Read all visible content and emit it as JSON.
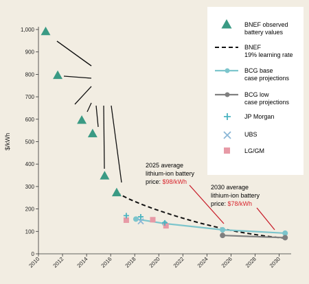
{
  "colors": {
    "background": "#f2ede2",
    "legend_bg": "#ffffff",
    "teal_marker": "#3a9a84",
    "bcg_base": "#7cc5cc",
    "bcg_low": "#7f7f7f",
    "dashed": "#111111",
    "jp_morgan": "#4ab3c0",
    "ubs": "#8ab7d6",
    "lg_gm": "#e79aa6",
    "price_red": "#d8242c"
  },
  "chart_data": {
    "type": "scatter",
    "ylabel": "$/kWh",
    "xlabel": "",
    "xlim": [
      2010,
      2031
    ],
    "ylim": [
      0,
      1000
    ],
    "x_ticks": [
      2010,
      2012,
      2014,
      2016,
      2018,
      2020,
      2022,
      2024,
      2026,
      2028,
      2030
    ],
    "y_ticks": [
      0,
      100,
      200,
      300,
      400,
      500,
      600,
      700,
      800,
      900,
      1000
    ],
    "y_tick_labels": [
      "0",
      "100",
      "200",
      "300",
      "400",
      "500",
      "600",
      "700",
      "800",
      "900",
      "1,000"
    ],
    "series": [
      {
        "key": "bnef_observed",
        "name": "BNEF observed battery values",
        "points": [
          [
            2010.6,
            990
          ],
          [
            2011.6,
            795
          ],
          [
            2013.6,
            595
          ],
          [
            2014.5,
            535
          ],
          [
            2015.5,
            347
          ],
          [
            2016.5,
            272
          ]
        ]
      },
      {
        "key": "bnef_learning",
        "name": "BNEF 19% learning rate",
        "points": [
          [
            2016.5,
            272
          ],
          [
            2017.5,
            245
          ],
          [
            2018.5,
            222
          ],
          [
            2019.5,
            202
          ],
          [
            2020.5,
            184
          ],
          [
            2021.5,
            167
          ],
          [
            2022.5,
            151
          ],
          [
            2023.5,
            136
          ],
          [
            2024.5,
            123
          ],
          [
            2025.5,
            110
          ],
          [
            2026.5,
            99
          ],
          [
            2027.5,
            90
          ],
          [
            2028.5,
            82
          ],
          [
            2029.5,
            75
          ],
          [
            2030.5,
            70
          ]
        ]
      },
      {
        "key": "bcg_base",
        "name": "BCG base case projections",
        "points": [
          [
            2018.1,
            155
          ],
          [
            2020.5,
            135
          ],
          [
            2025.3,
            107
          ],
          [
            2030.5,
            92
          ]
        ]
      },
      {
        "key": "bcg_low",
        "name": "BCG low case projections",
        "points": [
          [
            2025.3,
            82
          ],
          [
            2030.5,
            72
          ]
        ]
      },
      {
        "key": "jp_morgan",
        "name": "JP Morgan",
        "points": [
          [
            2017.3,
            170
          ],
          [
            2018.5,
            165
          ],
          [
            2020.5,
            138
          ]
        ]
      },
      {
        "key": "ubs",
        "name": "UBS",
        "points": [
          [
            2018.5,
            145
          ]
        ]
      },
      {
        "key": "lg_gm",
        "name": "LG/GM",
        "points": [
          [
            2017.3,
            150
          ],
          [
            2019.5,
            152
          ],
          [
            2020.6,
            125
          ]
        ]
      }
    ],
    "annotations": [
      {
        "key": "a2025",
        "line1": "2025 average",
        "line2": "lithium-ion battery",
        "price_label": "price: ",
        "price_value": "$98/kWh"
      },
      {
        "key": "a2030",
        "line1": "2030 average",
        "line2": "lithium-ion battery",
        "price_label": "price: ",
        "price_value": "$78/kWh"
      }
    ],
    "legend_position": "right",
    "grid": false
  }
}
